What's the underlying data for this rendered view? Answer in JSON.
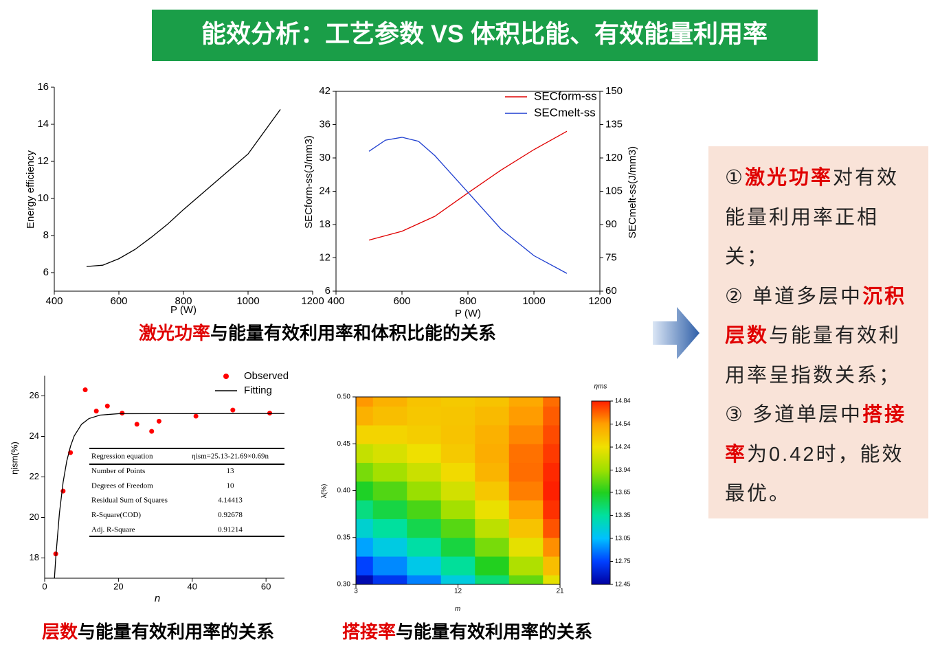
{
  "header": {
    "title": "能效分析：工艺参数 VS 体积比能、有效能量利用率"
  },
  "captions": [
    [
      "激光功率",
      "与能量有效利用率和体积比能的关系"
    ],
    [
      "层数",
      "与能量有效利用率的关系"
    ],
    [
      "搭接率",
      "与能量有效利用率的关系"
    ]
  ],
  "panel": {
    "items": [
      [
        "①",
        "激光功率",
        "对有效能量利用率正相关；"
      ],
      [
        "② 单道多层中",
        "沉积层数",
        "与能量有效利用率呈指数关系；"
      ],
      [
        "③ 多道单层中",
        "搭接率",
        "为0.42时，能效最优。"
      ]
    ]
  },
  "chart_data": [
    {
      "type": "line",
      "xlabel": "P (W)",
      "ylabel": "Energy efficiency",
      "xlim": [
        400,
        1200
      ],
      "xticks": [
        400,
        600,
        800,
        1000,
        1200
      ],
      "ylim": [
        5,
        16
      ],
      "yticks": [
        6,
        8,
        10,
        12,
        14,
        16
      ],
      "series": [
        {
          "color": "#000000",
          "x": [
            500,
            550,
            600,
            650,
            700,
            750,
            800,
            850,
            900,
            950,
            1000,
            1050,
            1100
          ],
          "values": [
            6.33,
            6.4,
            6.75,
            7.25,
            7.9,
            8.6,
            9.4,
            10.15,
            10.9,
            11.65,
            12.4,
            13.6,
            14.8
          ]
        }
      ]
    },
    {
      "type": "line",
      "xlabel": "P (W)",
      "ylabel": "SECform-ss(J/mm3)",
      "y2label": "SECmelt-ss(J/mm3)",
      "xlim": [
        400,
        1200
      ],
      "xticks": [
        400,
        600,
        800,
        1000,
        1200
      ],
      "ylim": [
        6,
        42
      ],
      "yticks": [
        6,
        12,
        18,
        24,
        30,
        36,
        42
      ],
      "y2lim": [
        60,
        150
      ],
      "y2ticks": [
        60,
        75,
        90,
        105,
        120,
        135,
        150
      ],
      "legend": "upper right",
      "series": [
        {
          "name": "SECform-ss",
          "color": "#e00000",
          "x": [
            500,
            600,
            700,
            800,
            900,
            1000,
            1100
          ],
          "values": [
            15.2,
            16.8,
            19.5,
            23.7,
            27.8,
            31.5,
            34.8
          ]
        },
        {
          "name": "SECmelt-ss",
          "color": "#1f3fd0",
          "axis": "y2",
          "x": [
            500,
            550,
            600,
            650,
            700,
            800,
            900,
            1000,
            1100
          ],
          "values": [
            123,
            128,
            129.3,
            127.5,
            121,
            104.5,
            88,
            76,
            68
          ]
        }
      ]
    },
    {
      "type": "scatter",
      "xlabel": "n",
      "ylabel": "ηism(%)",
      "xlim": [
        0,
        65
      ],
      "xticks": [
        0,
        20,
        40,
        60
      ],
      "ylim": [
        17,
        27
      ],
      "yticks": [
        18,
        20,
        22,
        24,
        26
      ],
      "legend": "upper right",
      "series": [
        {
          "name": "Observed",
          "type": "scatter",
          "color": "#ff0000",
          "x": [
            3,
            5,
            7,
            11,
            14,
            17,
            21,
            25,
            29,
            31,
            41,
            51,
            61
          ],
          "values": [
            18.2,
            21.3,
            23.2,
            26.3,
            25.25,
            25.5,
            25.15,
            24.6,
            24.25,
            24.75,
            25.0,
            25.3,
            25.15
          ]
        },
        {
          "name": "Fitting",
          "type": "line",
          "color": "#000000",
          "x": [
            2.65,
            3,
            4,
            5,
            6,
            7,
            8,
            10,
            12,
            15,
            20,
            65
          ],
          "values": [
            17,
            18.0,
            20.21,
            21.74,
            22.79,
            23.51,
            24.02,
            24.6,
            24.88,
            25.05,
            25.12,
            25.13
          ]
        }
      ],
      "table": {
        "rows": [
          [
            "Regression equation",
            "ηism=25.13-21.69×0.69n"
          ],
          [
            "Number of Points",
            13
          ],
          [
            "Degrees of Freedom",
            10
          ],
          [
            "Residual Sum of Squares",
            4.14413
          ],
          [
            "R-Square(COD)",
            0.92678
          ],
          [
            "Adj. R-Square",
            0.91214
          ]
        ]
      }
    },
    {
      "type": "contour",
      "xlabel": "m",
      "ylabel": "λ(%)",
      "colorbar_label": "ηms",
      "xlim": [
        3,
        21
      ],
      "xticks": [
        3,
        12,
        21
      ],
      "ylim": [
        0.3,
        0.5
      ],
      "yticks": [
        {
          "value": 0.3,
          "label": "0.30"
        },
        {
          "value": 0.35,
          "label": "0.35"
        },
        {
          "value": 0.4,
          "label": "0.40"
        },
        {
          "value": 0.45,
          "label": "0.45"
        },
        {
          "value": 0.5,
          "label": "0.50"
        }
      ],
      "x": [
        3,
        6,
        9,
        12,
        15,
        18,
        21
      ],
      "y": [
        0.3,
        0.32,
        0.34,
        0.36,
        0.38,
        0.4,
        0.42,
        0.44,
        0.46,
        0.48,
        0.5
      ],
      "z": [
        [
          12.5,
          12.7,
          12.9,
          13.15,
          13.45,
          13.8,
          14.2
        ],
        [
          12.75,
          12.92,
          13.12,
          13.36,
          13.65,
          14.0,
          14.4
        ],
        [
          12.98,
          13.14,
          13.33,
          13.57,
          13.85,
          14.2,
          14.58
        ],
        [
          13.2,
          13.35,
          13.54,
          13.77,
          14.05,
          14.38,
          14.72
        ],
        [
          13.42,
          13.56,
          13.74,
          13.96,
          14.22,
          14.52,
          14.8
        ],
        [
          13.63,
          13.76,
          13.93,
          14.13,
          14.36,
          14.62,
          14.84
        ],
        [
          13.85,
          13.96,
          14.1,
          14.27,
          14.45,
          14.66,
          14.82
        ],
        [
          14.08,
          14.15,
          14.24,
          14.35,
          14.48,
          14.65,
          14.78
        ],
        [
          14.3,
          14.3,
          14.33,
          14.38,
          14.46,
          14.6,
          14.74
        ],
        [
          14.46,
          14.4,
          14.36,
          14.37,
          14.42,
          14.55,
          14.7
        ],
        [
          14.56,
          14.46,
          14.38,
          14.35,
          14.38,
          14.5,
          14.66
        ]
      ],
      "zlim": [
        12.45,
        14.84
      ],
      "zticks": [
        12.45,
        12.75,
        13.05,
        13.35,
        13.65,
        13.94,
        14.24,
        14.54,
        14.84
      ],
      "colorscale": [
        "#0000a0",
        "#0040ff",
        "#00c0ff",
        "#00e0a0",
        "#20d020",
        "#a0e000",
        "#f0e000",
        "#ffa000",
        "#ff2000"
      ]
    }
  ]
}
